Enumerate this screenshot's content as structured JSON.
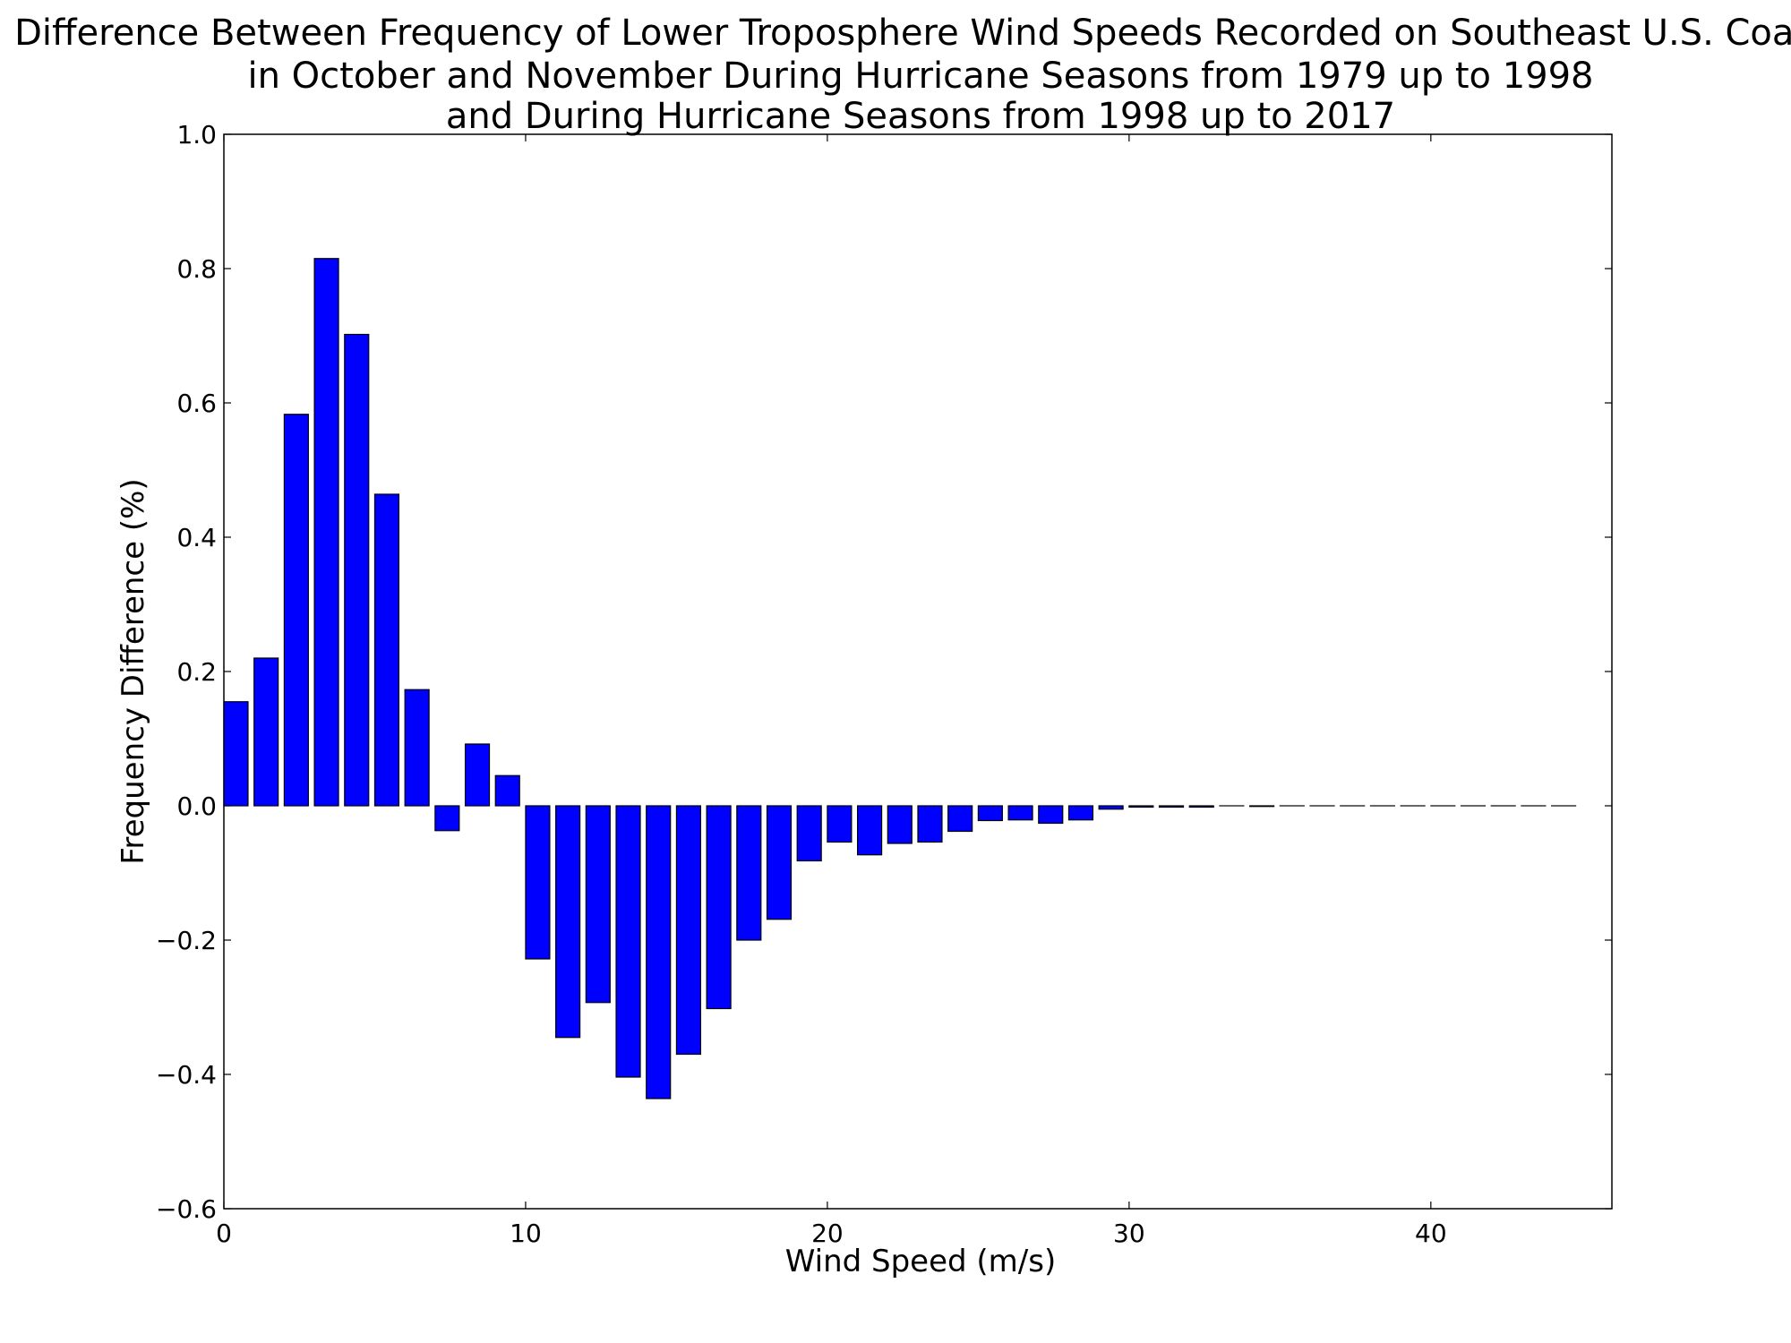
{
  "chart_data": {
    "type": "bar",
    "title_lines": [
      "Difference Between Frequency of Lower Troposphere Wind Speeds Recorded on Southeast U.S. Coast",
      "in October and November During Hurricane Seasons from 1979 up to 1998",
      "and During Hurricane Seasons from 1998 up to 2017"
    ],
    "xlabel": "Wind Speed (m/s)",
    "ylabel": "Frequency Difference (%)",
    "xlim": [
      0,
      46
    ],
    "ylim": [
      -0.6,
      1.0
    ],
    "xticks": [
      0,
      10,
      20,
      30,
      40
    ],
    "xtick_labels": [
      "0",
      "10",
      "20",
      "30",
      "40"
    ],
    "yticks": [
      -0.6,
      -0.4,
      -0.2,
      0.0,
      0.2,
      0.4,
      0.6,
      0.8,
      1.0
    ],
    "ytick_labels": [
      "−0.6",
      "−0.4",
      "−0.2",
      "0.0",
      "0.2",
      "0.4",
      "0.6",
      "0.8",
      "1.0"
    ],
    "grid": false,
    "bar_width": 0.8,
    "bar_color": "#0000ff",
    "edge_color": "#000000",
    "x": [
      0,
      1,
      2,
      3,
      4,
      5,
      6,
      7,
      8,
      9,
      10,
      11,
      12,
      13,
      14,
      15,
      16,
      17,
      18,
      19,
      20,
      21,
      22,
      23,
      24,
      25,
      26,
      27,
      28,
      29,
      30,
      31,
      32,
      33,
      34,
      35,
      36,
      37,
      38,
      39,
      40,
      41,
      42,
      43,
      44
    ],
    "values": [
      0.155,
      0.22,
      0.583,
      0.815,
      0.702,
      0.464,
      0.173,
      -0.037,
      0.092,
      0.045,
      -0.228,
      -0.345,
      -0.293,
      -0.404,
      -0.436,
      -0.37,
      -0.302,
      -0.2,
      -0.169,
      -0.082,
      -0.054,
      -0.073,
      -0.056,
      -0.054,
      -0.038,
      -0.022,
      -0.021,
      -0.026,
      -0.021,
      -0.005,
      -0.002,
      -0.002,
      -0.002,
      0.0,
      -0.001,
      0.0,
      0.0,
      0.0,
      0.0,
      0.0,
      0.0,
      0.0,
      0.0,
      0.0,
      0.0
    ]
  }
}
